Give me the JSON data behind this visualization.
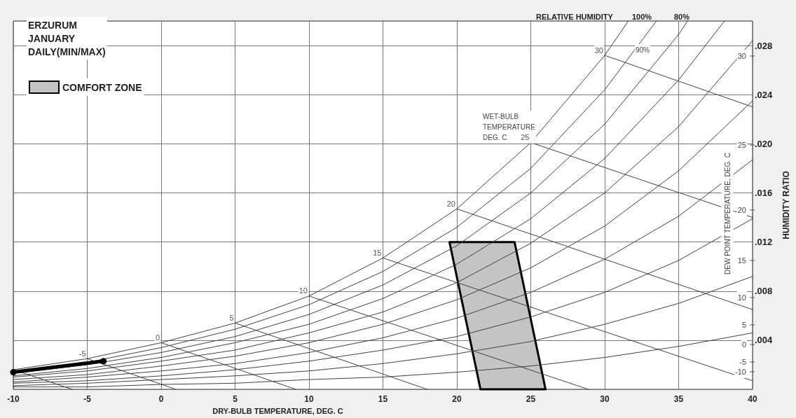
{
  "chart_data": {
    "type": "line",
    "title": "ERZURUM\nJANUARY\nDAILY(MIN/MAX)",
    "xlabel": "DRY-BULB TEMPERATURE, DEG. C",
    "ylabel": "HUMIDITY RATIO",
    "x": [
      -10,
      -5,
      0,
      5,
      10,
      15,
      20,
      25,
      30,
      35,
      40
    ],
    "xlim": [
      -10,
      40
    ],
    "xticks": [
      -10,
      -5,
      0,
      5,
      10,
      15,
      20,
      25,
      30,
      35,
      40
    ],
    "ylim": [
      0,
      0.03
    ],
    "yticks": [
      {
        "value": 0.004,
        "label": ".004"
      },
      {
        "value": 0.008,
        "label": ".008"
      },
      {
        "value": 0.012,
        "label": ".012"
      },
      {
        "value": 0.016,
        "label": ".016"
      },
      {
        "value": 0.02,
        "label": ".020"
      },
      {
        "value": 0.024,
        "label": ".024"
      },
      {
        "value": 0.028,
        "label": ".028"
      }
    ],
    "grid": true,
    "legend": "top left",
    "marker": "none",
    "series": [
      {
        "color": "#404040",
        "x": [
          -10,
          -5,
          0,
          5,
          10,
          15,
          20,
          25,
          30,
          31.6
        ],
        "values": [
          0.0016,
          0.0025,
          0.0038,
          0.0054,
          0.0076,
          0.0107,
          0.0147,
          0.0201,
          0.0272,
          0.03
        ]
      },
      {
        "color": "#404040",
        "x": [
          -10,
          -5,
          0,
          5,
          10,
          15,
          20,
          25,
          30,
          33.5
        ],
        "values": [
          0.0014,
          0.0022,
          0.0034,
          0.0049,
          0.0069,
          0.0096,
          0.0132,
          0.018,
          0.0244,
          0.03
        ]
      },
      {
        "color": "#404040",
        "x": [
          -10,
          -5,
          0,
          5,
          10,
          15,
          20,
          25,
          30,
          35,
          35.6
        ],
        "values": [
          0.0013,
          0.002,
          0.003,
          0.0043,
          0.0061,
          0.0085,
          0.0117,
          0.016,
          0.0216,
          0.0289,
          0.03
        ]
      },
      {
        "color": "#404040",
        "x": [
          -10,
          -5,
          0,
          5,
          10,
          15,
          20,
          25,
          30,
          35,
          38.1
        ],
        "values": [
          0.0011,
          0.0017,
          0.0026,
          0.0038,
          0.0053,
          0.0074,
          0.0102,
          0.0139,
          0.0188,
          0.0252,
          0.03
        ]
      },
      {
        "color": "#404040",
        "values": [
          0.001,
          0.0015,
          0.0023,
          0.0032,
          0.0046,
          0.0063,
          0.0087,
          0.0119,
          0.016,
          0.0214,
          0.0284
        ]
      },
      {
        "color": "#404040",
        "values": [
          0.0008,
          0.0012,
          0.0019,
          0.0027,
          0.0038,
          0.0053,
          0.0073,
          0.0099,
          0.0133,
          0.0178,
          0.0235
        ]
      },
      {
        "color": "#404040",
        "values": [
          0.0006,
          0.001,
          0.0015,
          0.0021,
          0.003,
          0.0042,
          0.0058,
          0.0079,
          0.0106,
          0.0141,
          0.0187
        ]
      },
      {
        "color": "#404040",
        "values": [
          0.0005,
          0.0007,
          0.0011,
          0.0016,
          0.0023,
          0.0032,
          0.0043,
          0.0059,
          0.0079,
          0.0105,
          0.0139
        ]
      },
      {
        "color": "#404040",
        "values": [
          0.0003,
          0.0005,
          0.0008,
          0.0011,
          0.0015,
          0.0021,
          0.0029,
          0.0039,
          0.0053,
          0.007,
          0.0092
        ]
      },
      {
        "color": "#404040",
        "values": [
          0.0002,
          0.0002,
          0.0004,
          0.0005,
          0.0008,
          0.001,
          0.0014,
          0.0019,
          0.0026,
          0.0035,
          0.0046
        ]
      },
      {
        "color": "#404040",
        "x": [
          -10,
          -6
        ],
        "values": [
          0.0016,
          0
        ]
      },
      {
        "color": "#404040",
        "x": [
          -5,
          1
        ],
        "values": [
          0.0025,
          0
        ]
      },
      {
        "color": "#404040",
        "x": [
          0,
          9.1
        ],
        "values": [
          0.0038,
          0
        ]
      },
      {
        "color": "#404040",
        "x": [
          5,
          18
        ],
        "values": [
          0.0054,
          0
        ]
      },
      {
        "color": "#404040",
        "x": [
          10,
          28.9
        ],
        "values": [
          0.0076,
          0
        ]
      },
      {
        "color": "#404040",
        "x": [
          15,
          40
        ],
        "values": [
          0.0107,
          0.0007
        ]
      },
      {
        "color": "#404040",
        "x": [
          20,
          40
        ],
        "values": [
          0.0147,
          0.0065
        ]
      },
      {
        "color": "#404040",
        "x": [
          25,
          40
        ],
        "values": [
          0.0201,
          0.014
        ]
      },
      {
        "color": "#404040",
        "x": [
          30,
          40
        ],
        "values": [
          0.0272,
          0.023
        ]
      },
      {
        "type": "area",
        "name": "COMFORT ZONE",
        "color": "#c4c4c4",
        "x": [
          19.5,
          23.9,
          26,
          21.6
        ],
        "values": [
          0.012,
          0.012,
          0,
          0
        ]
      },
      {
        "color": "#000000",
        "marker": "circle",
        "x": [
          -10,
          -3.9
        ],
        "values": [
          0.0014,
          0.0023
        ]
      }
    ],
    "annotations": [
      "RELATIVE HUMIDITY",
      "100%",
      "80%",
      "WET-BULB\nTEMPERATURE\nDEG. C",
      "90%",
      "DEW POINT TEMPERATURE, DEG. C",
      "30",
      "25",
      "20",
      "15",
      "10",
      "5",
      "0",
      "-5",
      "-10",
      {
        "text": "-5",
        "x": -5,
        "y": 0.0025
      },
      {
        "text": "0",
        "x": 0,
        "y": 0.0038
      },
      {
        "text": "5",
        "x": 5,
        "y": 0.0054
      },
      {
        "text": "10",
        "x": 10,
        "y": 0.0076
      },
      {
        "text": "15",
        "x": 15,
        "y": 0.0107
      },
      {
        "text": "20",
        "x": 20,
        "y": 0.0147
      },
      {
        "text": "25",
        "x": 25,
        "y": 0.0201
      },
      {
        "text": "30",
        "x": 30,
        "y": 0.0272
      }
    ]
  }
}
